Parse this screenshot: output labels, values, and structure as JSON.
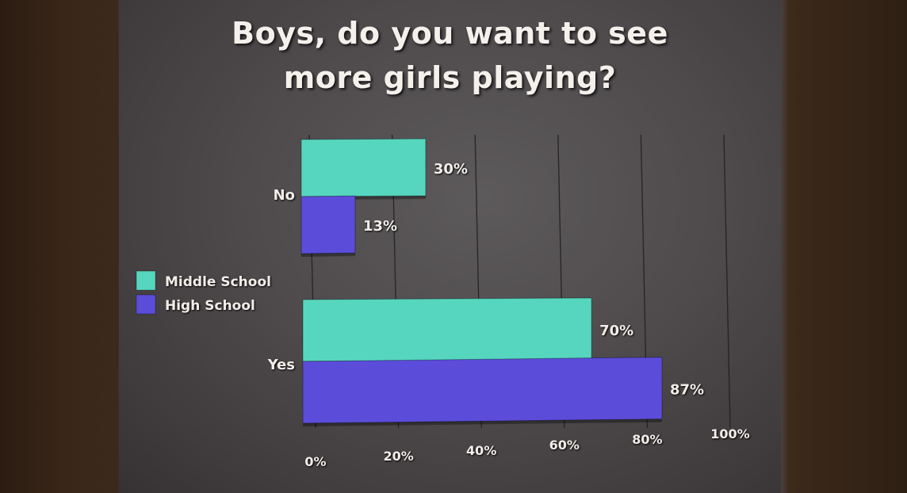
{
  "chart_data": {
    "type": "bar",
    "orientation": "horizontal",
    "title": "Boys, do you want to see more girls playing?",
    "title_lines": [
      "Boys, do you want to see",
      "more girls playing?"
    ],
    "categories": [
      "No",
      "Yes"
    ],
    "series": [
      {
        "name": "Middle School",
        "values": [
          30,
          70
        ],
        "labels": [
          "30%",
          "70%"
        ],
        "color": "#56d6be"
      },
      {
        "name": "High School",
        "values": [
          13,
          87
        ],
        "labels": [
          "13%",
          "87%"
        ],
        "color": "#5b4dd9"
      }
    ],
    "xlim": [
      0,
      100
    ],
    "x_ticks": [
      "0%",
      "20%",
      "40%",
      "60%",
      "80%",
      "100%"
    ],
    "grid": true,
    "legend_position": "left"
  }
}
